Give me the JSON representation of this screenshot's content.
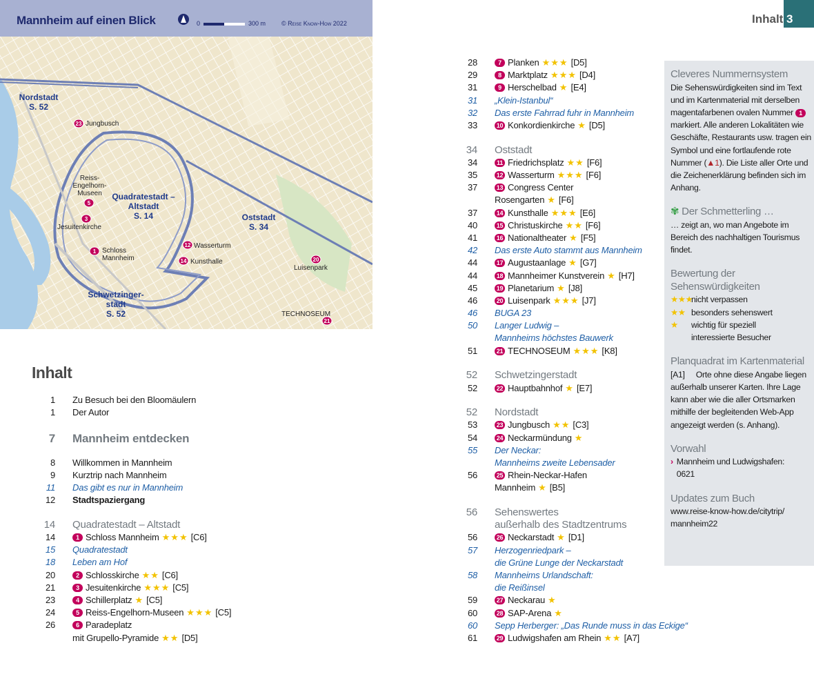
{
  "map": {
    "title": "Mannheim auf einen Blick",
    "scale_start": "0",
    "scale_end": "300 m",
    "copyright": "© Reise Know-How 2022",
    "labels": {
      "nordstadt": "Nordstadt",
      "nordstadt_page": "S. 52",
      "jungbusch": "Jungbusch",
      "rem1": "Reiss-",
      "rem2": "Engelhorn-",
      "rem3": "Museen",
      "quad1": "Quadratestadt –",
      "quad2": "Altstadt",
      "quad_page": "S. 14",
      "jesuiten": "Jesuitenkirche",
      "schloss1": "Schloss",
      "schloss2": "Mannheim",
      "wasserturm": "Wasserturm",
      "kunsthalle": "Kunsthalle",
      "oststadt": "Oststadt",
      "oststadt_page": "S. 34",
      "luisenpark": "Luisenpark",
      "schw1": "Schwetzinger-",
      "schw2": "stadt",
      "schw_page": "S. 52",
      "technoseum": "TECHNOSEUM"
    },
    "badges": {
      "jungbusch": "23",
      "rem": "5",
      "jesuiten": "3",
      "schloss": "1",
      "wasserturm": "12",
      "kunsthalle": "14",
      "luisenpark": "20",
      "technoseum": "21"
    }
  },
  "header": {
    "section": "Inhalt",
    "page": "3"
  },
  "toc": {
    "title": "Inhalt",
    "left": [
      {
        "page": "1",
        "text": "Zu Besuch bei den Bloomäulern"
      },
      {
        "page": "1",
        "text": "Der Autor"
      },
      {
        "page": "7",
        "text": "Mannheim entdecken",
        "type": "chapter"
      },
      {
        "page": "8",
        "text": "Willkommen in Mannheim"
      },
      {
        "page": "9",
        "text": "Kurztrip nach Mannheim"
      },
      {
        "page": "11",
        "text": "Das gibt es nur in Mannheim",
        "type": "italic"
      },
      {
        "page": "12",
        "text": "Stadtspaziergang",
        "type": "bold"
      },
      {
        "page": "14",
        "text": "Quadratestadt – Altstadt",
        "type": "section"
      },
      {
        "page": "14",
        "num": "1",
        "text": "Schloss Mannheim",
        "stars": "★★★",
        "grid": "[C6]"
      },
      {
        "page": "15",
        "text": "Quadratestadt",
        "type": "italic"
      },
      {
        "page": "18",
        "text": "Leben am Hof",
        "type": "italic"
      },
      {
        "page": "20",
        "num": "2",
        "text": "Schlosskirche",
        "stars": "★★",
        "grid": "[C6]"
      },
      {
        "page": "21",
        "num": "3",
        "text": "Jesuitenkirche",
        "stars": "★★★",
        "grid": "[C5]"
      },
      {
        "page": "23",
        "num": "4",
        "text": "Schillerplatz",
        "stars": "★",
        "grid": "[C5]"
      },
      {
        "page": "24",
        "num": "5",
        "text": "Reiss-Engelhorn-Museen",
        "stars": "★★★",
        "grid": "[C5]"
      },
      {
        "page": "26",
        "num": "6",
        "text": "Paradeplatz"
      },
      {
        "page": "",
        "text": "mit Grupello-Pyramide",
        "stars": "★★",
        "grid": "[D5]",
        "type": "cont"
      }
    ],
    "right": [
      {
        "page": "28",
        "num": "7",
        "text": "Planken",
        "stars": "★★★",
        "grid": "[D5]"
      },
      {
        "page": "29",
        "num": "8",
        "text": "Marktplatz",
        "stars": "★★★",
        "grid": "[D4]"
      },
      {
        "page": "31",
        "num": "9",
        "text": "Herschelbad",
        "stars": "★",
        "grid": "[E4]"
      },
      {
        "page": "31",
        "text": "„Klein-Istanbul“",
        "type": "italic"
      },
      {
        "page": "32",
        "text": "Das erste Fahrrad fuhr in Mannheim",
        "type": "italic"
      },
      {
        "page": "33",
        "num": "10",
        "text": "Konkordienkirche",
        "stars": "★",
        "grid": "[D5]"
      },
      {
        "page": "34",
        "text": "Oststadt",
        "type": "section"
      },
      {
        "page": "34",
        "num": "11",
        "text": "Friedrichsplatz",
        "stars": "★★",
        "grid": "[F6]"
      },
      {
        "page": "35",
        "num": "12",
        "text": "Wasserturm",
        "stars": "★★★",
        "grid": "[F6]"
      },
      {
        "page": "37",
        "num": "13",
        "text": "Congress Center"
      },
      {
        "page": "",
        "text": "Rosengarten",
        "stars": "★",
        "grid": "[F6]",
        "type": "cont"
      },
      {
        "page": "37",
        "num": "14",
        "text": "Kunsthalle",
        "stars": "★★★",
        "grid": "[E6]"
      },
      {
        "page": "40",
        "num": "15",
        "text": "Christuskirche",
        "stars": "★★",
        "grid": "[F6]"
      },
      {
        "page": "41",
        "num": "16",
        "text": "Nationaltheater",
        "stars": "★",
        "grid": "[F5]"
      },
      {
        "page": "42",
        "text": "Das erste Auto stammt aus Mannheim",
        "type": "italic"
      },
      {
        "page": "44",
        "num": "17",
        "text": "Augustaanlage",
        "stars": "★",
        "grid": "[G7]"
      },
      {
        "page": "44",
        "num": "18",
        "text": "Mannheimer Kunstverein",
        "stars": "★",
        "grid": "[H7]"
      },
      {
        "page": "45",
        "num": "19",
        "text": "Planetarium",
        "stars": "★",
        "grid": "[J8]"
      },
      {
        "page": "46",
        "num": "20",
        "text": "Luisenpark",
        "stars": "★★★",
        "grid": "[J7]"
      },
      {
        "page": "46",
        "text": "BUGA 23",
        "type": "italic"
      },
      {
        "page": "50",
        "text": "Langer Ludwig –",
        "type": "italic"
      },
      {
        "page": "",
        "text": "Mannheims höchstes Bauwerk",
        "type": "italic"
      },
      {
        "page": "51",
        "num": "21",
        "text": "TECHNOSEUM",
        "stars": "★★★",
        "grid": "[K8]"
      },
      {
        "page": "52",
        "text": "Schwetzingerstadt",
        "type": "section"
      },
      {
        "page": "52",
        "num": "22",
        "text": "Hauptbahnhof",
        "stars": "★",
        "grid": "[E7]"
      },
      {
        "page": "52",
        "text": "Nordstadt",
        "type": "section"
      },
      {
        "page": "53",
        "num": "23",
        "text": "Jungbusch",
        "stars": "★★",
        "grid": "[C3]"
      },
      {
        "page": "54",
        "num": "24",
        "text": "Neckarmündung",
        "stars": "★"
      },
      {
        "page": "55",
        "text": "Der Neckar:",
        "type": "italic"
      },
      {
        "page": "",
        "text": "Mannheims zweite Lebensader",
        "type": "italic"
      },
      {
        "page": "56",
        "num": "25",
        "text": "Rhein-Neckar-Hafen"
      },
      {
        "page": "",
        "text": "Mannheim",
        "stars": "★",
        "grid": "[B5]",
        "type": "cont"
      },
      {
        "page": "56",
        "text": "Sehenswertes",
        "type": "section"
      },
      {
        "page": "",
        "text": "außerhalb des Stadtzentrums",
        "type": "section2"
      },
      {
        "page": "56",
        "num": "26",
        "text": "Neckarstadt",
        "stars": "★",
        "grid": "[D1]"
      },
      {
        "page": "57",
        "text": "Herzogenriedpark –",
        "type": "italic"
      },
      {
        "page": "",
        "text": "die Grüne Lunge der Neckarstadt",
        "type": "italic"
      },
      {
        "page": "58",
        "text": "Mannheims Urlandschaft:",
        "type": "italic"
      },
      {
        "page": "",
        "text": "die Reißinsel",
        "type": "italic"
      },
      {
        "page": "59",
        "num": "27",
        "text": "Neckarau",
        "stars": "★"
      },
      {
        "page": "60",
        "num": "28",
        "text": "SAP-Arena",
        "stars": "★"
      },
      {
        "page": "60",
        "text": "Sepp Herberger: „Das Runde muss in das Eckige“",
        "type": "italic"
      },
      {
        "page": "61",
        "num": "29",
        "text": "Ludwigshafen am Rhein",
        "stars": "★★",
        "grid": "[A7]"
      }
    ]
  },
  "sidebar": {
    "numbering_title": "Cleveres Nummernsystem",
    "numbering_text1": "Die Sehenswürdigkeiten sind im Text und im Kartenmaterial mit derselben magentafarbenen ovalen Nummer",
    "numbering_badge": "1",
    "numbering_text2": "markiert. Alle anderen Lokalitäten wie Geschäfte, Restaurants usw. tragen ein Symbol und eine fortlaufende rote Nummer (",
    "numbering_red": "1",
    "numbering_text3": "). Die Liste aller Orte und die Zeichenerklärung befinden sich im Anhang.",
    "butterfly_title": "Der Schmetterling …",
    "butterfly_text": "… zeigt an, wo man Angebote im Bereich des nachhaltigen Tourismus findet.",
    "rating_title": "Bewertung der Sehenswürdigkeiten",
    "ratings": [
      {
        "stars": "★★★",
        "text": "nicht verpassen"
      },
      {
        "stars": "★★",
        "text": "besonders sehenswert"
      },
      {
        "stars": "★",
        "text": "wichtig für speziell interessierte Besucher"
      }
    ],
    "grid_title": "Planquadrat im Kartenmaterial",
    "grid_code": "[A1]",
    "grid_text": "Orte ohne diese Angabe liegen außerhalb unserer Karten. Ihre Lage kann aber wie die aller Ortsmarken mithilfe der begleitenden Web-App angezeigt werden (s. Anhang).",
    "dial_title": "Vorwahl",
    "dial_text": "Mannheim und Ludwigshafen: 0621",
    "updates_title": "Updates zum Buch",
    "updates_text": "www.reise-know-how.de/citytrip/ mannheim22"
  },
  "colors": {
    "accent_magenta": "#c2005b",
    "star": "#f2c200",
    "teal": "#2a7077",
    "link_blue": "#1f5fa6",
    "map_header": "#a8b1d2"
  }
}
